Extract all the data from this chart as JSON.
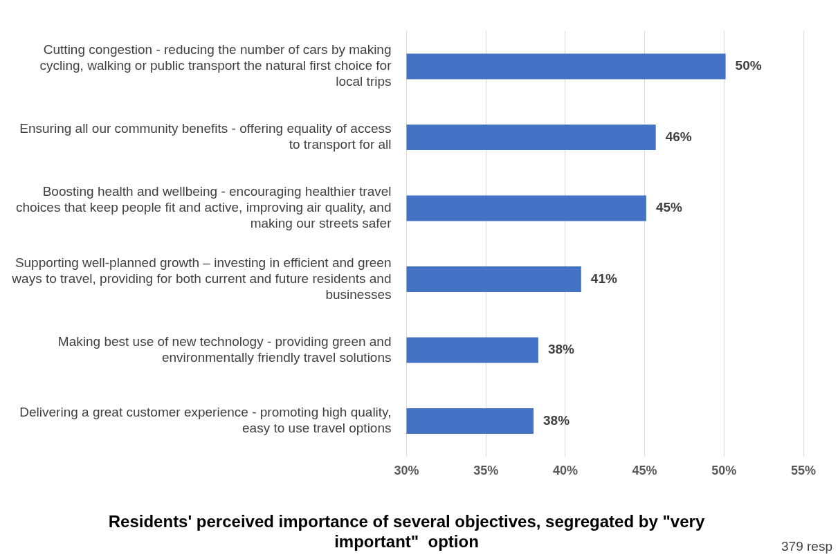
{
  "chart_data": {
    "type": "bar",
    "orientation": "horizontal",
    "title": "Residents' perceived importance of several objectives, segregated by \"very important\"  option",
    "categories": [
      "Cutting congestion - reducing the number of cars by making cycling, walking or public transport the natural first choice for local trips",
      "Ensuring all our community benefits - offering equality of access to transport for all",
      "Boosting health and wellbeing - encouraging healthier travel choices that keep people fit and active, improving air quality, and making our streets safer",
      "Supporting well-planned growth – investing in efficient and green ways to travel, providing for both current and future residents and businesses",
      "Making best use of new technology - providing green and environmentally friendly travel solutions",
      "Delivering a great customer experience - promoting high quality, easy to use travel options"
    ],
    "values": [
      50.1,
      45.7,
      45.1,
      41.0,
      38.3,
      38.0
    ],
    "value_labels": [
      "50%",
      "46%",
      "45%",
      "41%",
      "38%",
      "38%"
    ],
    "color": "#4472c4",
    "xlim": [
      30,
      55
    ],
    "xticks": [
      {
        "value": 30,
        "label": "30%"
      },
      {
        "value": 35,
        "label": "35%"
      },
      {
        "value": 40,
        "label": "40%"
      },
      {
        "value": 45,
        "label": "45%"
      },
      {
        "value": 50,
        "label": "50%"
      },
      {
        "value": 55,
        "label": "55%"
      }
    ],
    "grid": "x",
    "legend": false,
    "annotations": [
      "379 resp"
    ]
  }
}
